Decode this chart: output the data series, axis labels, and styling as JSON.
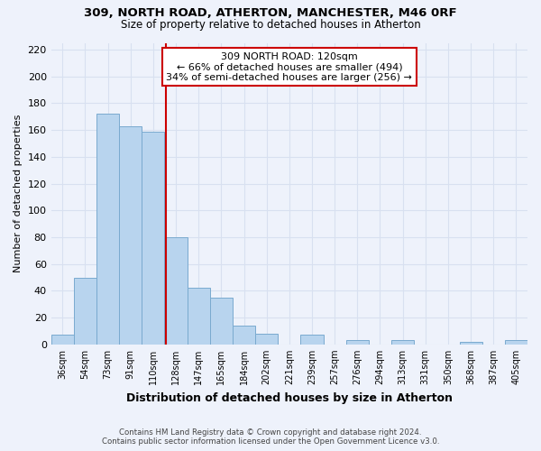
{
  "title": "309, NORTH ROAD, ATHERTON, MANCHESTER, M46 0RF",
  "subtitle": "Size of property relative to detached houses in Atherton",
  "xlabel": "Distribution of detached houses by size in Atherton",
  "ylabel": "Number of detached properties",
  "bar_labels": [
    "36sqm",
    "54sqm",
    "73sqm",
    "91sqm",
    "110sqm",
    "128sqm",
    "147sqm",
    "165sqm",
    "184sqm",
    "202sqm",
    "221sqm",
    "239sqm",
    "257sqm",
    "276sqm",
    "294sqm",
    "313sqm",
    "331sqm",
    "350sqm",
    "368sqm",
    "387sqm",
    "405sqm"
  ],
  "bar_values": [
    7,
    50,
    172,
    163,
    159,
    80,
    42,
    35,
    14,
    8,
    0,
    7,
    0,
    3,
    0,
    3,
    0,
    0,
    2,
    0,
    3
  ],
  "bar_color": "#b8d4ee",
  "bar_edge_color": "#7aaacf",
  "ylim": [
    0,
    225
  ],
  "yticks": [
    0,
    20,
    40,
    60,
    80,
    100,
    120,
    140,
    160,
    180,
    200,
    220
  ],
  "vline_color": "#cc0000",
  "annotation_title": "309 NORTH ROAD: 120sqm",
  "annotation_line1": "← 66% of detached houses are smaller (494)",
  "annotation_line2": "34% of semi-detached houses are larger (256) →",
  "annotation_box_color": "#ffffff",
  "annotation_box_edge": "#cc0000",
  "footer_line1": "Contains HM Land Registry data © Crown copyright and database right 2024.",
  "footer_line2": "Contains public sector information licensed under the Open Government Licence v3.0.",
  "background_color": "#eef2fb",
  "grid_color": "#d8e0f0"
}
